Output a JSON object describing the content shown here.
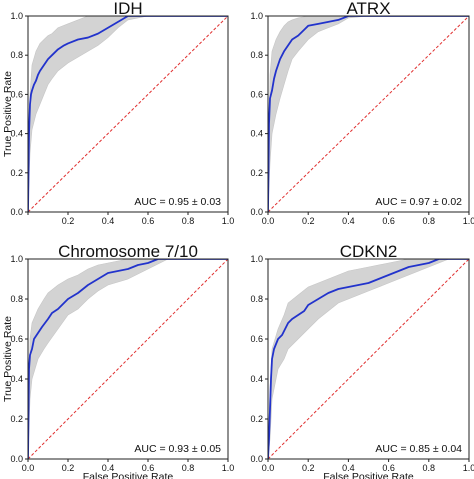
{
  "chart_data": [
    {
      "type": "line",
      "title": "IDH",
      "xlabel": "",
      "ylabel": "True Positive Rate",
      "xlim": [
        0,
        1
      ],
      "ylim": [
        0,
        1
      ],
      "xticks": [
        "",
        "0.2",
        "0.4",
        "0.6",
        "0.8",
        "1.0"
      ],
      "yticks": [
        "0.0",
        "0.2",
        "0.4",
        "0.6",
        "0.8",
        "1.0"
      ],
      "annotation": "AUC = 0.95 ± 0.03",
      "colors": {
        "mean": "#2233cc",
        "band": "#d3d3d3",
        "chance": "#e03030"
      },
      "grid": false,
      "series": [
        {
          "x": [
            0,
            0.005,
            0.01,
            0.015,
            0.02,
            0.03,
            0.04,
            0.05,
            0.06,
            0.08,
            0.1,
            0.12,
            0.15,
            0.18,
            0.2,
            0.25,
            0.3,
            0.35,
            0.4,
            0.45,
            0.5,
            0.6,
            0.7,
            0.8,
            0.9,
            1.0
          ],
          "y": [
            0,
            0.4,
            0.55,
            0.6,
            0.62,
            0.65,
            0.67,
            0.7,
            0.72,
            0.75,
            0.78,
            0.8,
            0.83,
            0.85,
            0.86,
            0.88,
            0.89,
            0.91,
            0.94,
            0.97,
            1.0,
            1.0,
            1.0,
            1.0,
            1.0,
            1.0
          ]
        },
        {
          "x": [
            0,
            1
          ],
          "y": [
            0,
            1
          ]
        }
      ],
      "band": {
        "x": [
          0,
          0.01,
          0.02,
          0.04,
          0.06,
          0.08,
          0.1,
          0.12,
          0.15,
          0.2,
          0.25,
          0.3,
          0.35,
          0.4,
          0.45,
          0.5,
          0.6,
          0.8,
          1.0
        ],
        "lower": [
          0,
          0.3,
          0.42,
          0.5,
          0.55,
          0.6,
          0.65,
          0.68,
          0.72,
          0.76,
          0.79,
          0.82,
          0.85,
          0.89,
          0.94,
          0.98,
          1.0,
          1.0,
          1.0
        ],
        "upper": [
          0,
          0.6,
          0.75,
          0.82,
          0.86,
          0.88,
          0.9,
          0.91,
          0.94,
          0.96,
          0.98,
          1.0,
          1.0,
          1.0,
          1.0,
          1.0,
          1.0,
          1.0,
          1.0
        ]
      }
    },
    {
      "type": "line",
      "title": "ATRX",
      "xlabel": "",
      "ylabel": "",
      "xlim": [
        0,
        1
      ],
      "ylim": [
        0,
        1
      ],
      "xticks": [
        "0.0",
        "0.2",
        "0.4",
        "0.6",
        "0.8",
        "1.0"
      ],
      "yticks": [
        "0.0",
        "0.2",
        "0.4",
        "0.6",
        "0.8",
        "1.0"
      ],
      "annotation": "AUC = 0.97 ± 0.02",
      "colors": {
        "mean": "#2233cc",
        "band": "#d3d3d3",
        "chance": "#e03030"
      },
      "grid": false,
      "series": [
        {
          "x": [
            0,
            0.005,
            0.01,
            0.02,
            0.03,
            0.04,
            0.05,
            0.06,
            0.08,
            0.1,
            0.12,
            0.15,
            0.18,
            0.2,
            0.25,
            0.3,
            0.35,
            0.4,
            0.5,
            0.6,
            1.0
          ],
          "y": [
            0,
            0.45,
            0.58,
            0.62,
            0.68,
            0.72,
            0.75,
            0.78,
            0.82,
            0.85,
            0.88,
            0.9,
            0.93,
            0.95,
            0.96,
            0.97,
            0.98,
            1.0,
            1.0,
            1.0,
            1.0
          ]
        },
        {
          "x": [
            0,
            1
          ],
          "y": [
            0,
            1
          ]
        }
      ],
      "band": {
        "x": [
          0,
          0.01,
          0.02,
          0.04,
          0.06,
          0.08,
          0.1,
          0.12,
          0.15,
          0.2,
          0.25,
          0.3,
          0.35,
          0.4,
          0.5,
          1.0
        ],
        "lower": [
          0,
          0.25,
          0.4,
          0.5,
          0.58,
          0.65,
          0.72,
          0.78,
          0.82,
          0.88,
          0.92,
          0.94,
          0.96,
          0.99,
          1.0,
          1.0
        ],
        "upper": [
          0,
          0.7,
          0.82,
          0.88,
          0.92,
          0.95,
          0.97,
          0.98,
          0.99,
          1.0,
          1.0,
          1.0,
          1.0,
          1.0,
          1.0,
          1.0
        ]
      }
    },
    {
      "type": "line",
      "title": "Chromosome 7/10",
      "xlabel": "False Positive Rate",
      "ylabel": "True Positive Rate",
      "xlim": [
        0,
        1
      ],
      "ylim": [
        0,
        1
      ],
      "xticks": [
        "0.0",
        "0.2",
        "0.4",
        "0.6",
        "0.8",
        "1.0"
      ],
      "yticks": [
        "0.0",
        "0.2",
        "0.4",
        "0.6",
        "0.8",
        "1.0"
      ],
      "annotation": "AUC = 0.93 ± 0.05",
      "colors": {
        "mean": "#2233cc",
        "band": "#d3d3d3",
        "chance": "#e03030"
      },
      "grid": false,
      "series": [
        {
          "x": [
            0,
            0.005,
            0.01,
            0.02,
            0.03,
            0.05,
            0.07,
            0.1,
            0.12,
            0.15,
            0.18,
            0.2,
            0.25,
            0.3,
            0.35,
            0.4,
            0.5,
            0.55,
            0.6,
            0.65,
            0.7,
            0.8,
            1.0
          ],
          "y": [
            0,
            0.45,
            0.52,
            0.55,
            0.6,
            0.63,
            0.66,
            0.7,
            0.73,
            0.75,
            0.78,
            0.8,
            0.83,
            0.87,
            0.9,
            0.93,
            0.95,
            0.97,
            0.98,
            1.0,
            1.0,
            1.0,
            1.0
          ]
        },
        {
          "x": [
            0,
            1
          ],
          "y": [
            0,
            1
          ]
        }
      ],
      "band": {
        "x": [
          0,
          0.01,
          0.02,
          0.05,
          0.08,
          0.1,
          0.15,
          0.2,
          0.25,
          0.3,
          0.35,
          0.4,
          0.5,
          0.6,
          0.7,
          0.8,
          1.0
        ],
        "lower": [
          0,
          0.3,
          0.4,
          0.5,
          0.55,
          0.58,
          0.65,
          0.72,
          0.75,
          0.8,
          0.84,
          0.87,
          0.9,
          0.95,
          1.0,
          1.0,
          1.0
        ],
        "upper": [
          0,
          0.6,
          0.68,
          0.75,
          0.8,
          0.83,
          0.87,
          0.9,
          0.92,
          0.95,
          0.97,
          0.98,
          1.0,
          1.0,
          1.0,
          1.0,
          1.0
        ]
      }
    },
    {
      "type": "line",
      "title": "CDKN2",
      "xlabel": "False Positive Rate",
      "ylabel": "",
      "xlim": [
        0,
        1
      ],
      "ylim": [
        0,
        1
      ],
      "xticks": [
        "0.0",
        "0.2",
        "0.4",
        "0.6",
        "0.8",
        "1.0"
      ],
      "yticks": [
        "0.0",
        "0.2",
        "0.4",
        "0.6",
        "0.8",
        "1.0"
      ],
      "annotation": "AUC = 0.85 ± 0.04",
      "colors": {
        "mean": "#2233cc",
        "band": "#d3d3d3",
        "chance": "#e03030"
      },
      "grid": false,
      "series": [
        {
          "x": [
            0,
            0.005,
            0.01,
            0.015,
            0.02,
            0.03,
            0.05,
            0.07,
            0.1,
            0.12,
            0.15,
            0.18,
            0.2,
            0.25,
            0.3,
            0.35,
            0.4,
            0.45,
            0.5,
            0.55,
            0.6,
            0.65,
            0.7,
            0.75,
            0.8,
            0.85,
            0.9,
            1.0
          ],
          "y": [
            0,
            0.1,
            0.25,
            0.4,
            0.5,
            0.55,
            0.6,
            0.62,
            0.68,
            0.7,
            0.72,
            0.74,
            0.77,
            0.8,
            0.83,
            0.85,
            0.86,
            0.87,
            0.88,
            0.9,
            0.92,
            0.94,
            0.96,
            0.97,
            0.98,
            1.0,
            1.0,
            1.0
          ]
        },
        {
          "x": [
            0,
            1
          ],
          "y": [
            0,
            1
          ]
        }
      ],
      "band": {
        "x": [
          0,
          0.01,
          0.02,
          0.05,
          0.08,
          0.1,
          0.15,
          0.2,
          0.25,
          0.3,
          0.35,
          0.4,
          0.5,
          0.6,
          0.7,
          0.8,
          0.9,
          1.0
        ],
        "lower": [
          0,
          0.1,
          0.3,
          0.45,
          0.5,
          0.55,
          0.6,
          0.65,
          0.7,
          0.74,
          0.78,
          0.8,
          0.84,
          0.88,
          0.92,
          0.96,
          1.0,
          1.0
        ],
        "upper": [
          0,
          0.35,
          0.55,
          0.65,
          0.72,
          0.78,
          0.82,
          0.86,
          0.88,
          0.9,
          0.92,
          0.94,
          0.96,
          0.98,
          1.0,
          1.0,
          1.0,
          1.0
        ]
      }
    }
  ]
}
